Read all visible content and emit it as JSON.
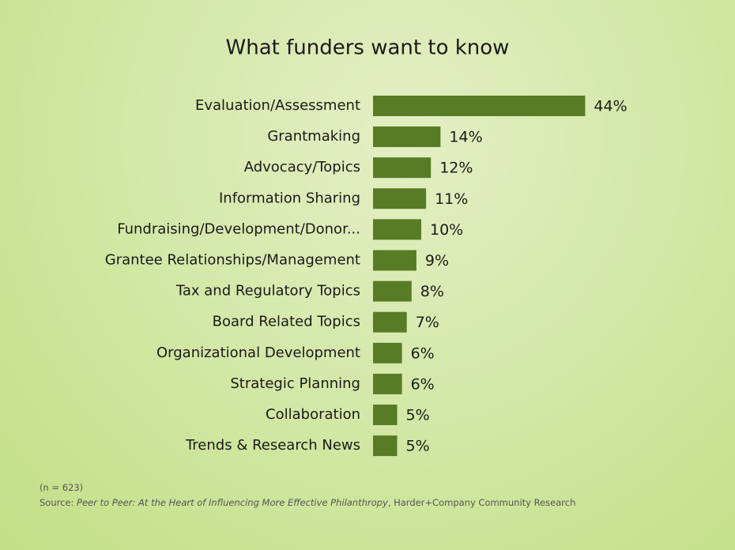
{
  "chart_data": {
    "type": "bar",
    "orientation": "horizontal",
    "title": "What funders want to know",
    "categories": [
      "Evaluation/Assessment",
      "Grantmaking",
      "Advocacy/Topics",
      "Information Sharing",
      "Fundraising/Development/Donor...",
      "Grantee Relationships/Management",
      "Tax and Regulatory Topics",
      "Board Related Topics",
      "Organizational Development",
      "Strategic Planning",
      "Collaboration",
      "Trends & Research News"
    ],
    "values": [
      44,
      14,
      12,
      11,
      10,
      9,
      8,
      7,
      6,
      6,
      5,
      5
    ],
    "value_labels": [
      "44%",
      "14%",
      "12%",
      "11%",
      "10%",
      "9%",
      "8%",
      "7%",
      "6%",
      "6%",
      "5%",
      "5%"
    ],
    "color": "#587c25",
    "note": "(n = 623)",
    "source": {
      "prefix": "Source: ",
      "title": "Peer to Peer: At the Heart of Influencing More Effective Philanthropy",
      "suffix": ", Harder+Company Community Research"
    }
  }
}
